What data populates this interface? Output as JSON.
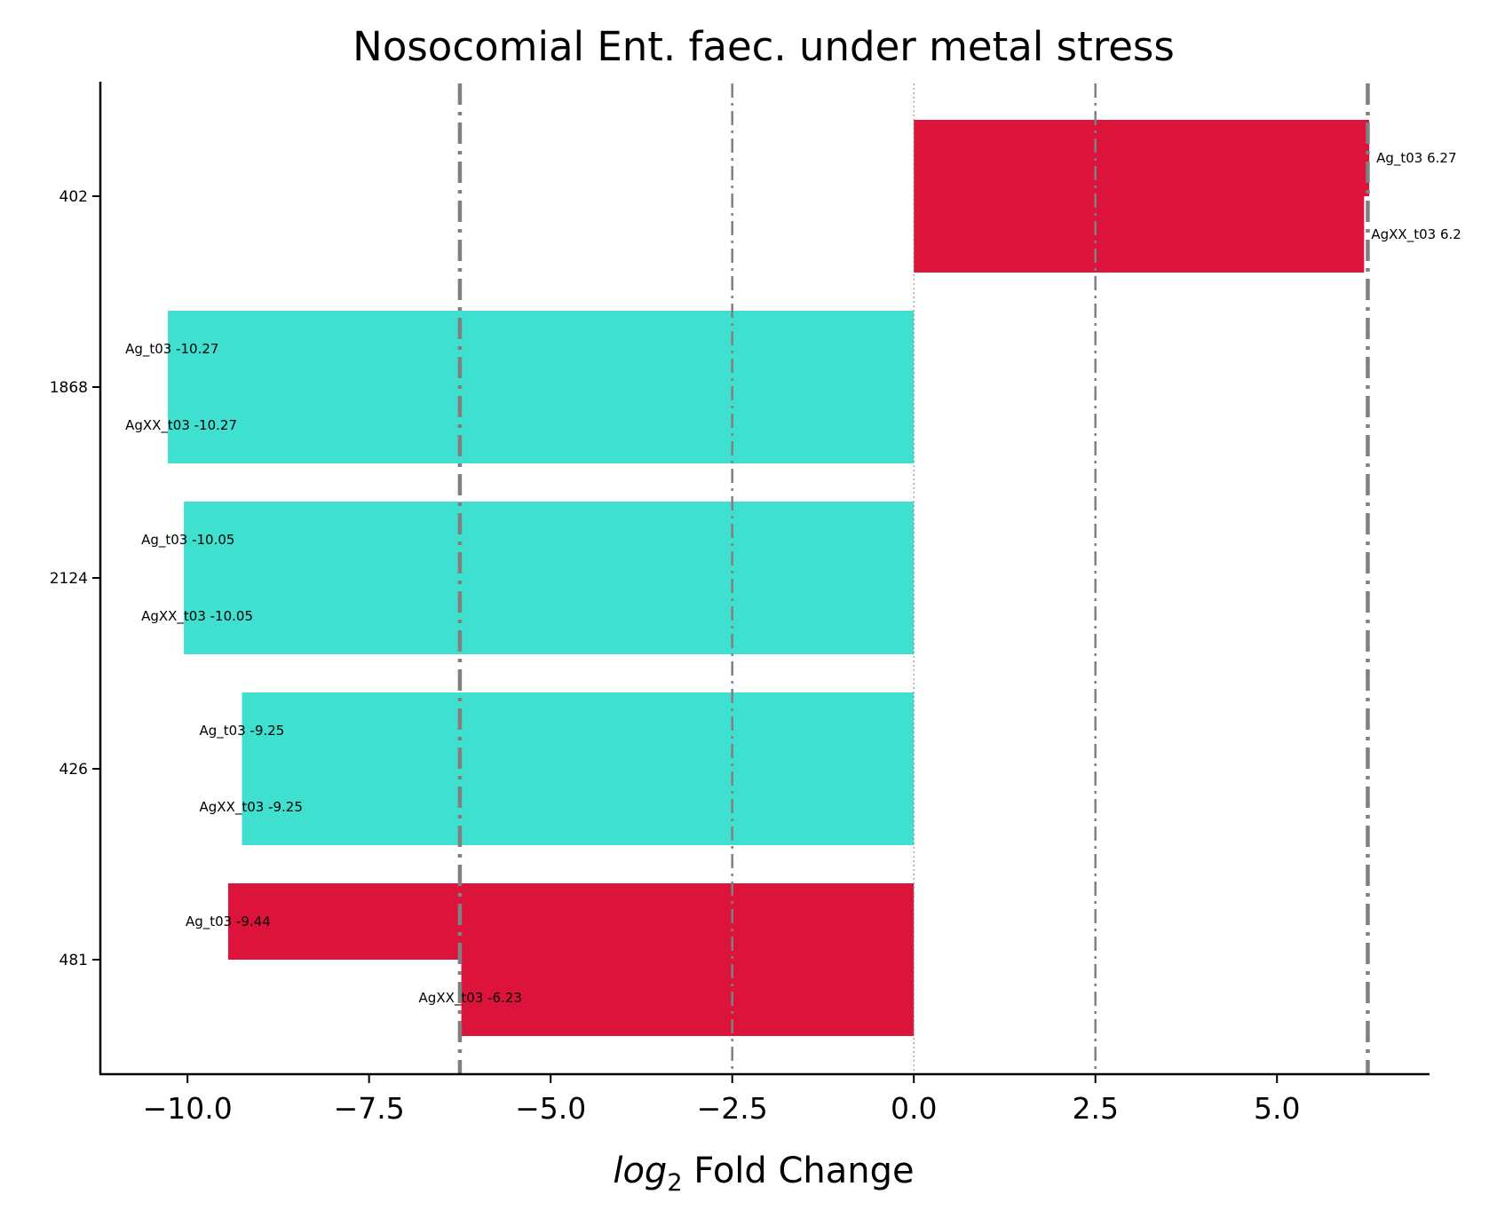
{
  "chart_data": {
    "type": "bar",
    "orientation": "horizontal",
    "title": "Nosocomial Ent. faec. under metal stress",
    "xlabel_main": "log",
    "xlabel_sub": "2",
    "xlabel_rest": " Fold Change",
    "ylabel": "",
    "xlim": [
      -11.2,
      7.1
    ],
    "xticks": [
      -10.0,
      -7.5,
      -5.0,
      -2.5,
      0.0,
      2.5,
      5.0
    ],
    "xtick_labels": [
      "−10.0",
      "−7.5",
      "−5.0",
      "−2.5",
      "0.0",
      "2.5",
      "5.0"
    ],
    "categories": [
      "402",
      "1868",
      "2124",
      "426",
      "481"
    ],
    "series": [
      {
        "label_prefix": "Ag_t03",
        "values": [
          6.27,
          -10.27,
          -10.05,
          -9.25,
          -9.44
        ],
        "labels": [
          "Ag_t03 6.27",
          "Ag_t03 -10.27",
          "Ag_t03 -10.05",
          "Ag_t03 -9.25",
          "Ag_t03 -9.44"
        ],
        "colors": [
          "#dc143c",
          "#40e0d0",
          "#40e0d0",
          "#40e0d0",
          "#dc143c"
        ]
      },
      {
        "label_prefix": "AgXX_t03",
        "values": [
          6.2,
          -10.27,
          -10.05,
          -9.25,
          -6.23
        ],
        "labels": [
          "AgXX_t03 6.2",
          "AgXX_t03 -10.27",
          "AgXX_t03 -10.05",
          "AgXX_t03 -9.25",
          "AgXX_t03 -6.23"
        ],
        "colors": [
          "#dc143c",
          "#40e0d0",
          "#40e0d0",
          "#40e0d0",
          "#dc143c"
        ]
      }
    ],
    "reference_lines": [
      {
        "x": -6.25,
        "style": "dashdot",
        "weight": "thick",
        "color": "#808080"
      },
      {
        "x": -2.5,
        "style": "dashdot",
        "weight": "thin",
        "color": "#808080"
      },
      {
        "x": 0.0,
        "style": "dotted",
        "weight": "hair",
        "color": "#808080"
      },
      {
        "x": 2.5,
        "style": "dashdot",
        "weight": "thin",
        "color": "#808080"
      },
      {
        "x": 6.25,
        "style": "dashdot",
        "weight": "thick",
        "color": "#808080"
      }
    ],
    "grid": false,
    "legend": "none"
  }
}
